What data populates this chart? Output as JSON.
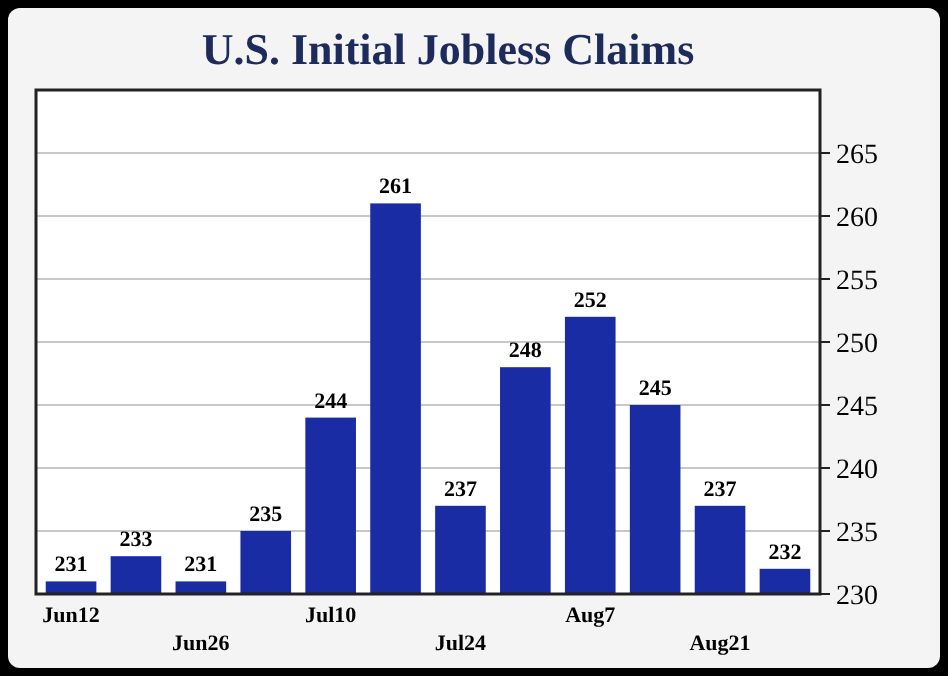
{
  "chart_data": {
    "type": "bar",
    "title": "U.S. Initial Jobless Claims",
    "categories": [
      "Jun12",
      null,
      "Jun26",
      null,
      "Jul10",
      null,
      "Jul24",
      null,
      "Aug7",
      null,
      "Aug21",
      null
    ],
    "values": [
      231,
      233,
      231,
      235,
      244,
      261,
      237,
      248,
      252,
      245,
      237,
      232
    ],
    "color": "#1a2ca3",
    "ylim": [
      230,
      270
    ],
    "yticks": [
      230,
      235,
      240,
      245,
      250,
      255,
      260,
      265
    ],
    "grid": "y",
    "data_labels": true
  }
}
